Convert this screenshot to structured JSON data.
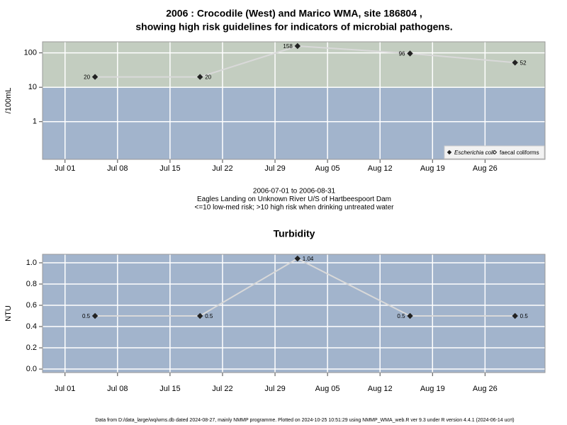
{
  "chart_data": [
    {
      "type": "line",
      "title": [
        "2006 : Crocodile (West) and Marico WMA, site 186804 ,",
        "showing high risk guidelines for indicators of microbial pathogens."
      ],
      "subtitle": [
        "2006-07-01 to 2006-08-31",
        "Eagles Landing on Unknown River U/S of Hartbeespoort Dam",
        "<=10 low-med risk; >10 high risk when drinking untreated water"
      ],
      "y_label": "/100mL",
      "x": [
        "2006-07-05",
        "2006-07-19",
        "2006-08-01",
        "2006-08-16",
        "2006-08-30"
      ],
      "series": [
        {
          "name": "Escherichia coli",
          "color": "#222222",
          "marker": "filled-diamond",
          "values": [
            20,
            20,
            158,
            96,
            52
          ]
        },
        {
          "name": "faecal coliforms",
          "color": "#222222",
          "marker": "open-diamond",
          "values": [
            null,
            null,
            null,
            null,
            null
          ]
        }
      ],
      "line_color": "#d9d9d9",
      "log_y": true,
      "ylim": [
        0.08,
        210
      ],
      "yticks": [
        1,
        10,
        100
      ],
      "xlim": [
        "2006-06-28",
        "2006-09-03"
      ],
      "xticks": [
        {
          "value": "2006-07-01",
          "label": "Jul 01"
        },
        {
          "value": "2006-07-08",
          "label": "Jul 08"
        },
        {
          "value": "2006-07-15",
          "label": "Jul 15"
        },
        {
          "value": "2006-07-22",
          "label": "Jul 22"
        },
        {
          "value": "2006-07-29",
          "label": "Jul 29"
        },
        {
          "value": "2006-08-05",
          "label": "Aug 05"
        },
        {
          "value": "2006-08-12",
          "label": "Aug 12"
        },
        {
          "value": "2006-08-19",
          "label": "Aug 19"
        },
        {
          "value": "2006-08-26",
          "label": "Aug 26"
        }
      ],
      "risk_threshold": 10,
      "band_colors": {
        "above": "#c3cdc0",
        "below": "#a2b4cc"
      },
      "grid": true,
      "legend": "bottom-right"
    },
    {
      "type": "line",
      "title": [
        "Turbidity"
      ],
      "y_label": "NTU",
      "x": [
        "2006-07-05",
        "2006-07-19",
        "2006-08-01",
        "2006-08-16",
        "2006-08-30"
      ],
      "series": [
        {
          "name": "Turbidity",
          "color": "#222222",
          "marker": "filled-diamond",
          "values": [
            0.5,
            0.5,
            1.04,
            0.5,
            0.5
          ]
        }
      ],
      "line_color": "#d9d9d9",
      "log_y": false,
      "ylim": [
        -0.033,
        1.08
      ],
      "yticks": [
        {
          "value": 0,
          "label": "0.0"
        },
        0.2,
        0.4,
        0.6,
        0.8,
        {
          "value": 1,
          "label": "1.0"
        }
      ],
      "xlim": [
        "2006-06-28",
        "2006-09-03"
      ],
      "xticks": [
        {
          "value": "2006-07-01",
          "label": "Jul 01"
        },
        {
          "value": "2006-07-08",
          "label": "Jul 08"
        },
        {
          "value": "2006-07-15",
          "label": "Jul 15"
        },
        {
          "value": "2006-07-22",
          "label": "Jul 22"
        },
        {
          "value": "2006-07-29",
          "label": "Jul 29"
        },
        {
          "value": "2006-08-05",
          "label": "Aug 05"
        },
        {
          "value": "2006-08-12",
          "label": "Aug 12"
        },
        {
          "value": "2006-08-19",
          "label": "Aug 19"
        },
        {
          "value": "2006-08-26",
          "label": "Aug 26"
        }
      ],
      "background": "#a2b4cc",
      "grid": true,
      "legend": "none"
    }
  ],
  "footer": "Data from D:/data_large/wq/wms.db dated 2024-08-27, mainly NMMP programme. Plotted on 2024-10-25 10:51:29 using NMMP_WMA_web.R ver 9.3 under R version 4.4.1 (2024-06-14 ucrt)"
}
